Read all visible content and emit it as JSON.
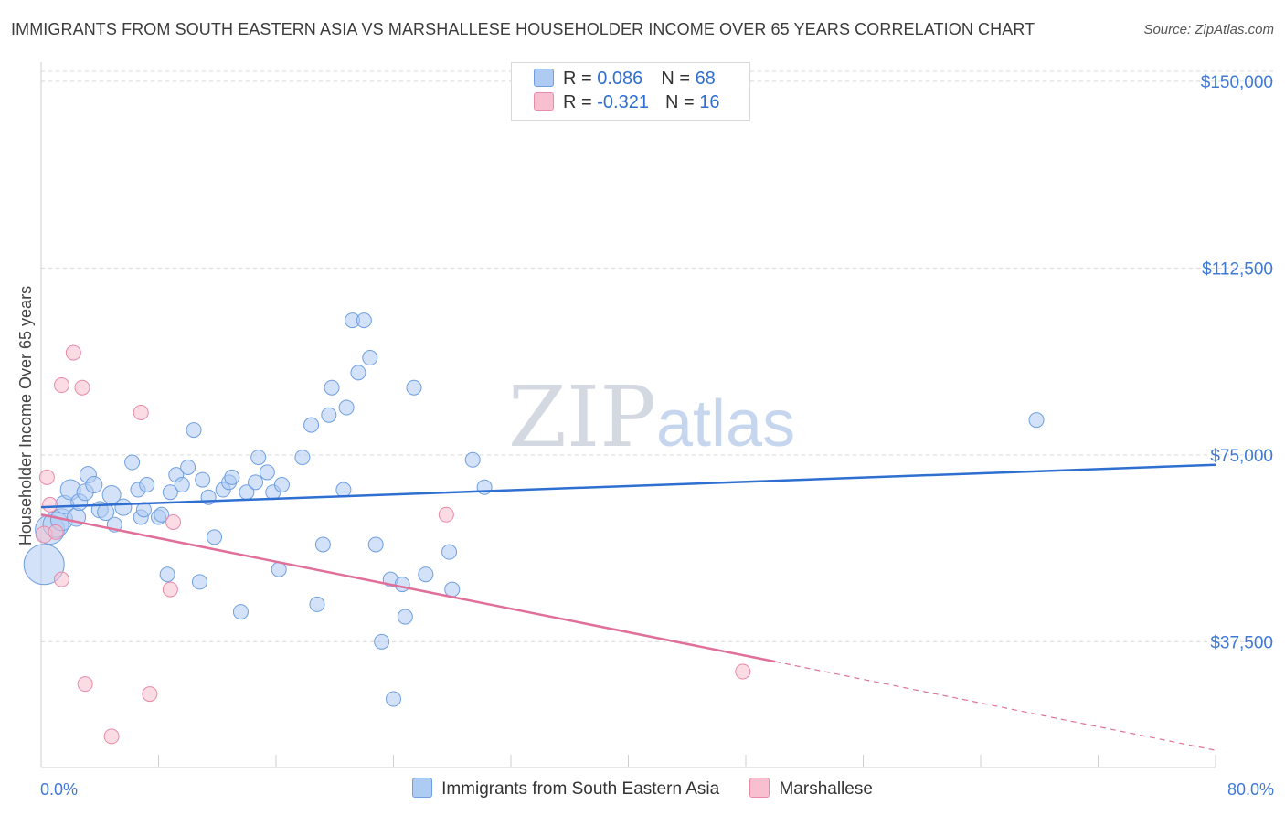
{
  "title": "IMMIGRANTS FROM SOUTH EASTERN ASIA VS MARSHALLESE HOUSEHOLDER INCOME OVER 65 YEARS CORRELATION CHART",
  "source": "Source: ZipAtlas.com",
  "watermark": {
    "zip": "ZIP",
    "atlas": "atlas"
  },
  "legend_top": [
    {
      "r_label": "R = ",
      "r_value": "0.086",
      "n_label": "N = ",
      "n_value": "68",
      "color": "#aecbf3"
    },
    {
      "r_label": "R = ",
      "r_value": "-0.321",
      "n_label": "N = ",
      "n_value": "16",
      "color": "#f8bfd0"
    }
  ],
  "chart_data": {
    "type": "scatter",
    "ylabel": "Householder Income Over 65 years",
    "x_range": [
      0,
      80
    ],
    "y_range": [
      15000,
      152000
    ],
    "x_tick_labels": [
      {
        "x": 0,
        "label": "0.0%"
      },
      {
        "x": 80,
        "label": "80.0%"
      }
    ],
    "x_minor_ticks": [
      0,
      8,
      16,
      24,
      32,
      40,
      48,
      56,
      64,
      72,
      80
    ],
    "y_ticks": [
      {
        "y": 150000,
        "label": "$150,000"
      },
      {
        "y": 112500,
        "label": "$112,500"
      },
      {
        "y": 75000,
        "label": "$75,000"
      },
      {
        "y": 37500,
        "label": "$37,500"
      }
    ],
    "grid": "horizontal-dashed",
    "legend_position": "bottom",
    "series": [
      {
        "name": "Immigrants from South Eastern Asia",
        "color": "#aecbf3",
        "stroke": "#6f9fe0",
        "trend": {
          "x0": 0,
          "y0": 64500,
          "x1": 80,
          "y1": 73000,
          "color": "#2f6fd1"
        },
        "points": [
          [
            0.2,
            53000,
            22
          ],
          [
            0.6,
            60000,
            16
          ],
          [
            1.0,
            61000,
            14
          ],
          [
            1.4,
            62000,
            12
          ],
          [
            1.6,
            65000,
            10
          ],
          [
            2.0,
            68000,
            11
          ],
          [
            2.4,
            62500,
            10
          ],
          [
            2.6,
            65500,
            9
          ],
          [
            3.0,
            67500,
            9
          ],
          [
            3.2,
            71000,
            9
          ],
          [
            3.6,
            69000,
            9
          ],
          [
            4.0,
            64000,
            9
          ],
          [
            4.4,
            63500,
            9
          ],
          [
            4.8,
            67000,
            10
          ],
          [
            5.0,
            61000,
            8
          ],
          [
            5.6,
            64500,
            9
          ],
          [
            6.2,
            73500,
            8
          ],
          [
            6.6,
            68000,
            8
          ],
          [
            6.8,
            62500,
            8
          ],
          [
            7.0,
            64000,
            8
          ],
          [
            7.2,
            69000,
            8
          ],
          [
            8.0,
            62500,
            8
          ],
          [
            8.2,
            63000,
            8
          ],
          [
            8.6,
            51000,
            8
          ],
          [
            8.8,
            67500,
            8
          ],
          [
            9.2,
            71000,
            8
          ],
          [
            9.6,
            69000,
            8
          ],
          [
            10.0,
            72500,
            8
          ],
          [
            10.4,
            80000,
            8
          ],
          [
            10.8,
            49500,
            8
          ],
          [
            11.0,
            70000,
            8
          ],
          [
            11.4,
            66500,
            8
          ],
          [
            11.8,
            58500,
            8
          ],
          [
            12.4,
            68000,
            8
          ],
          [
            12.8,
            69500,
            8
          ],
          [
            13.0,
            70500,
            8
          ],
          [
            13.6,
            43500,
            8
          ],
          [
            14.0,
            67500,
            8
          ],
          [
            14.6,
            69500,
            8
          ],
          [
            14.8,
            74500,
            8
          ],
          [
            15.4,
            71500,
            8
          ],
          [
            15.8,
            67500,
            8
          ],
          [
            16.2,
            52000,
            8
          ],
          [
            16.4,
            69000,
            8
          ],
          [
            17.8,
            74500,
            8
          ],
          [
            18.4,
            81000,
            8
          ],
          [
            18.8,
            45000,
            8
          ],
          [
            19.2,
            57000,
            8
          ],
          [
            19.6,
            83000,
            8
          ],
          [
            19.8,
            88500,
            8
          ],
          [
            20.6,
            68000,
            8
          ],
          [
            20.8,
            84500,
            8
          ],
          [
            21.2,
            102000,
            8
          ],
          [
            21.6,
            91500,
            8
          ],
          [
            22.0,
            102000,
            8
          ],
          [
            22.4,
            94500,
            8
          ],
          [
            22.8,
            57000,
            8
          ],
          [
            23.2,
            37500,
            8
          ],
          [
            23.8,
            50000,
            8
          ],
          [
            24.0,
            26000,
            8
          ],
          [
            24.6,
            49000,
            8
          ],
          [
            24.8,
            42500,
            8
          ],
          [
            25.4,
            88500,
            8
          ],
          [
            26.2,
            51000,
            8
          ],
          [
            27.8,
            55500,
            8
          ],
          [
            28.0,
            48000,
            8
          ],
          [
            29.4,
            74000,
            8
          ],
          [
            30.2,
            68500,
            8
          ],
          [
            67.8,
            82000,
            8
          ]
        ]
      },
      {
        "name": "Marshallese",
        "color": "#f8bfd0",
        "stroke": "#e98aa8",
        "trend": {
          "x0": 0,
          "y0": 63000,
          "x1": 50,
          "y1": 33500,
          "dash_to_x": 80,
          "dash_to_y": 15700,
          "color": "#e0709a"
        },
        "points": [
          [
            0.2,
            59000,
            9
          ],
          [
            0.4,
            70500,
            8
          ],
          [
            0.6,
            65000,
            8
          ],
          [
            1.0,
            59500,
            8
          ],
          [
            1.4,
            50000,
            8
          ],
          [
            1.4,
            89000,
            8
          ],
          [
            2.2,
            95500,
            8
          ],
          [
            2.8,
            88500,
            8
          ],
          [
            3.0,
            29000,
            8
          ],
          [
            4.8,
            18500,
            8
          ],
          [
            6.8,
            83500,
            8
          ],
          [
            7.4,
            27000,
            8
          ],
          [
            8.8,
            48000,
            8
          ],
          [
            9.0,
            61500,
            8
          ],
          [
            27.6,
            63000,
            8
          ],
          [
            47.8,
            31500,
            8
          ]
        ]
      }
    ]
  }
}
